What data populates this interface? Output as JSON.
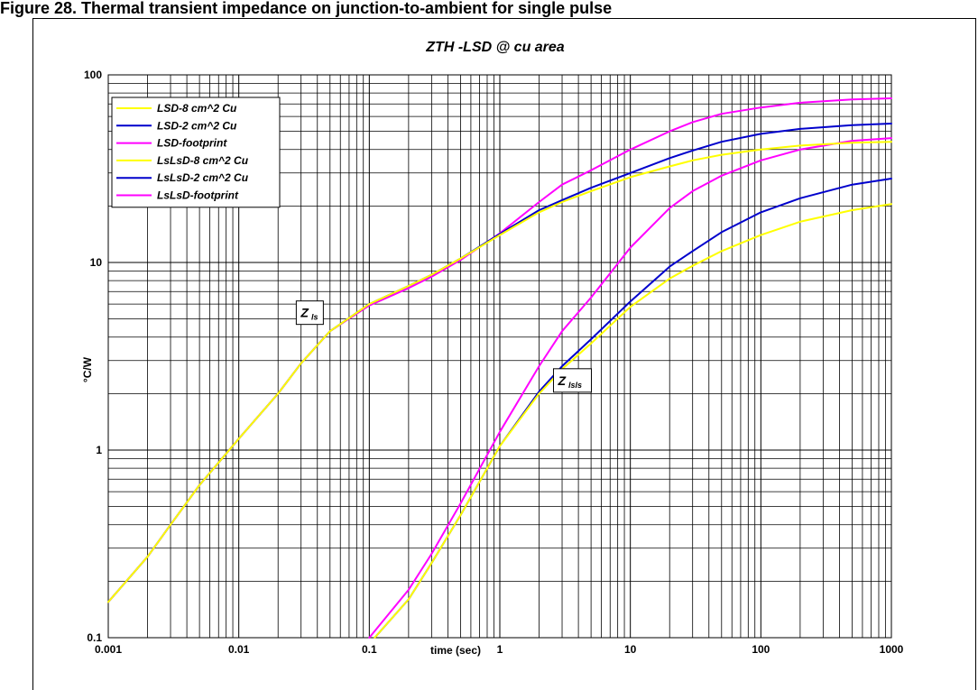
{
  "caption": "Figure 28. Thermal transient impedance on junction-to-ambient for single pulse",
  "chart_data": {
    "type": "line",
    "title": "ZTH -LSD @ cu area",
    "xlabel": "time (sec)",
    "ylabel": "°C/W",
    "xscale": "log",
    "yscale": "log",
    "xlim": [
      0.001,
      1000
    ],
    "ylim": [
      0.1,
      100
    ],
    "x_tick_labels": [
      "0.001",
      "0.01",
      "0.1",
      "1",
      "10",
      "100",
      "1000"
    ],
    "y_tick_labels": [
      "0.1",
      "1",
      "10",
      "100"
    ],
    "grid": true,
    "legend_position": "top-left",
    "annotations": [
      {
        "main": "Z",
        "sub": "ls",
        "x": 0.035,
        "y": 5.4
      },
      {
        "main": "Z",
        "sub": "lsls",
        "x": 3.6,
        "y": 2.35
      }
    ],
    "series": [
      {
        "name": "LSD-8 cm^2 Cu",
        "color": "#ffff00",
        "x": [
          0.001,
          0.002,
          0.003,
          0.005,
          0.01,
          0.02,
          0.03,
          0.05,
          0.1,
          0.2,
          0.3,
          0.5,
          1,
          2,
          3,
          5,
          10,
          20,
          30,
          50,
          100,
          200,
          500,
          1000
        ],
        "y": [
          0.155,
          0.27,
          0.4,
          0.65,
          1.15,
          2.0,
          2.9,
          4.3,
          6.0,
          7.5,
          8.6,
          10.5,
          14.0,
          18.5,
          21.0,
          24.0,
          28.5,
          32.5,
          35.0,
          37.5,
          40.0,
          42.0,
          43.5,
          44.0
        ]
      },
      {
        "name": "LSD-2 cm^2 Cu",
        "color": "#0000cc",
        "x": [
          0.001,
          0.002,
          0.003,
          0.005,
          0.01,
          0.02,
          0.03,
          0.05,
          0.1,
          0.2,
          0.3,
          0.5,
          1,
          2,
          3,
          5,
          10,
          20,
          30,
          50,
          100,
          200,
          500,
          1000
        ],
        "y": [
          0.155,
          0.27,
          0.4,
          0.65,
          1.15,
          2.0,
          2.9,
          4.3,
          6.0,
          7.5,
          8.6,
          10.5,
          14.2,
          19.0,
          21.5,
          25.0,
          30.0,
          36.0,
          39.5,
          44.0,
          48.5,
          51.5,
          54.0,
          55.0
        ]
      },
      {
        "name": "LSD-footprint",
        "color": "#ff00ff",
        "x": [
          0.001,
          0.002,
          0.003,
          0.005,
          0.01,
          0.02,
          0.03,
          0.05,
          0.1,
          0.2,
          0.3,
          0.5,
          1,
          2,
          3,
          5,
          10,
          20,
          30,
          50,
          100,
          200,
          500,
          1000
        ],
        "y": [
          0.155,
          0.27,
          0.4,
          0.65,
          1.15,
          2.0,
          2.9,
          4.3,
          5.9,
          7.3,
          8.4,
          10.3,
          14.3,
          21.0,
          26.0,
          31.0,
          40.0,
          50.0,
          56.0,
          62.0,
          67.0,
          71.0,
          74.0,
          75.0
        ]
      },
      {
        "name": "LsLsD-8 cm^2 Cu",
        "color": "#ffff00",
        "x": [
          0.11,
          0.2,
          0.3,
          0.5,
          1,
          2,
          3,
          5,
          10,
          20,
          30,
          50,
          100,
          200,
          500,
          1000
        ],
        "y": [
          0.1,
          0.16,
          0.25,
          0.45,
          1.05,
          2.0,
          2.7,
          3.7,
          5.8,
          8.2,
          9.6,
          11.5,
          14.0,
          16.5,
          19.0,
          20.5
        ]
      },
      {
        "name": "LsLsD-2 cm^2 Cu",
        "color": "#0000cc",
        "x": [
          0.11,
          0.2,
          0.3,
          0.5,
          1,
          2,
          3,
          5,
          10,
          20,
          30,
          50,
          100,
          200,
          500,
          1000
        ],
        "y": [
          0.1,
          0.16,
          0.25,
          0.45,
          1.05,
          2.05,
          2.8,
          3.9,
          6.2,
          9.5,
          11.5,
          14.5,
          18.5,
          22.0,
          26.0,
          28.0
        ]
      },
      {
        "name": "LsLsD-footprint",
        "color": "#ff00ff",
        "x": [
          0.1,
          0.2,
          0.3,
          0.5,
          1,
          2,
          3,
          5,
          10,
          20,
          30,
          50,
          100,
          200,
          500,
          1000
        ],
        "y": [
          0.1,
          0.18,
          0.28,
          0.52,
          1.25,
          2.8,
          4.3,
          6.5,
          12.0,
          19.5,
          24.0,
          29.0,
          35.0,
          40.0,
          44.5,
          46.0
        ]
      }
    ]
  }
}
